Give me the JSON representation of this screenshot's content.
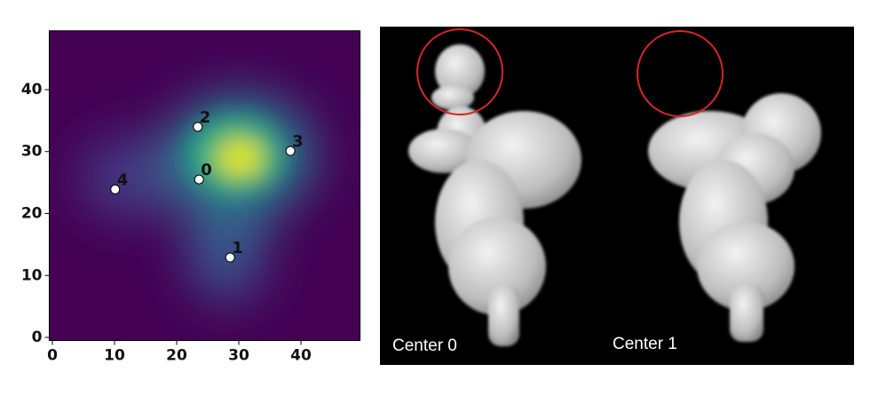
{
  "chart_data": {
    "type": "scatter",
    "x": [
      23.6,
      28.6,
      23.4,
      38.3,
      10.1
    ],
    "y": [
      25.5,
      12.9,
      34.0,
      30.1,
      23.9
    ],
    "point_labels": [
      "0",
      "1",
      "2",
      "3",
      "4"
    ],
    "color": "#ffffff",
    "xlim": [
      -0.5,
      49.5
    ],
    "ylim": [
      -0.5,
      49.5
    ],
    "xticks": [
      0,
      10,
      20,
      30,
      40
    ],
    "yticks": [
      0,
      10,
      20,
      30,
      40
    ]
  },
  "images": [
    {
      "label": "Center 0"
    },
    {
      "label": "Center 1"
    }
  ]
}
